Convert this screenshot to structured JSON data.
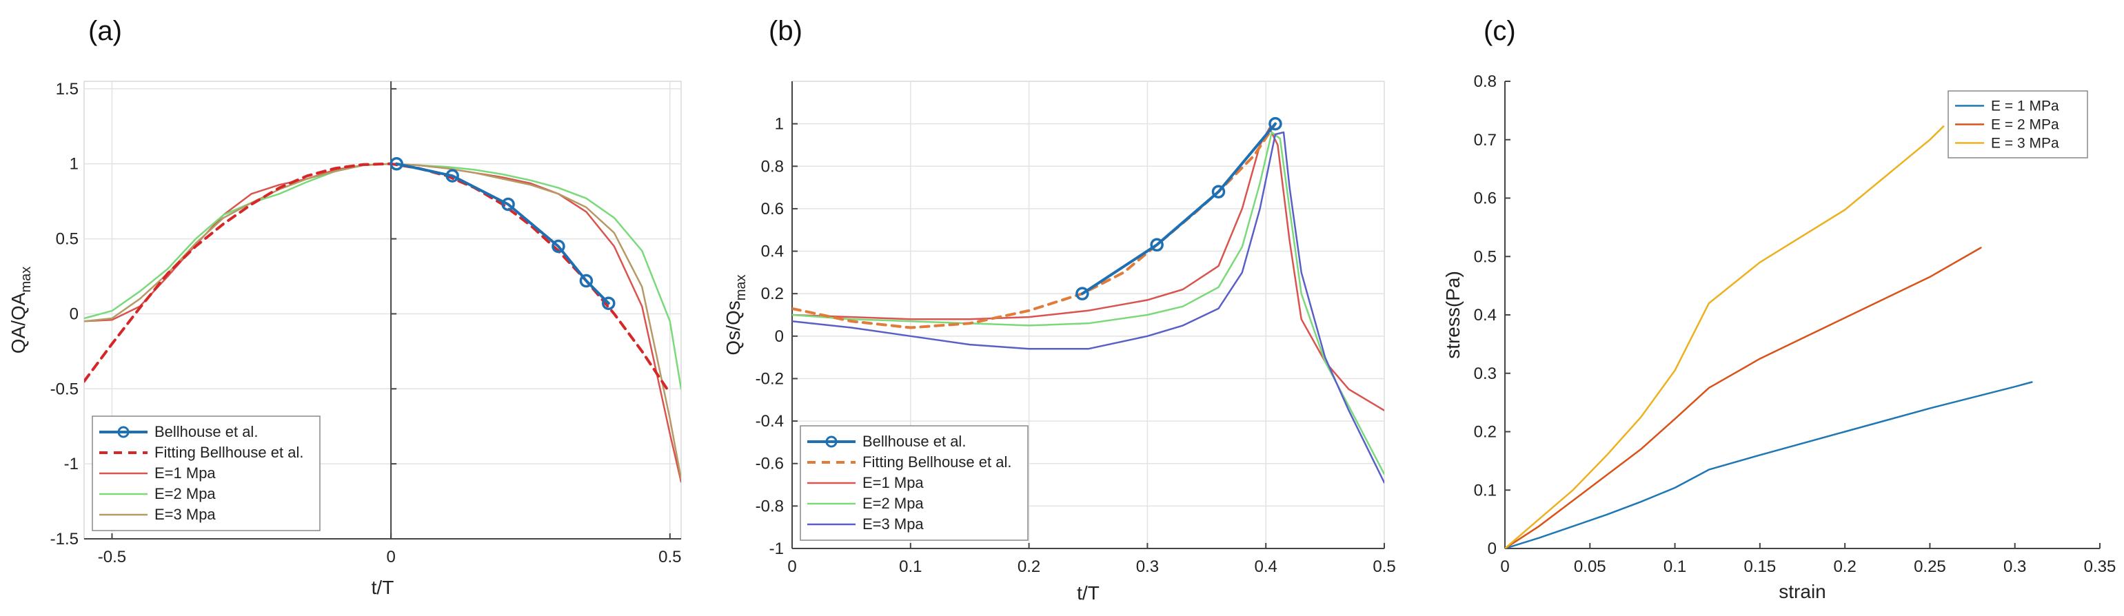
{
  "figure": {
    "panel_labels": [
      "(a)",
      "(b)",
      "(c)"
    ]
  },
  "chart_data": [
    {
      "panel": "(a)",
      "type": "line",
      "title": "",
      "xlabel": "t/T",
      "ylabel": "QA/QA",
      "ylabel_sub": "max",
      "xlim": [
        -0.55,
        0.52
      ],
      "ylim": [
        -1.5,
        1.55
      ],
      "xticks": [
        -0.5,
        0,
        0.5
      ],
      "xtick_labels": [
        "-0.5",
        "0",
        "0.5"
      ],
      "yticks": [
        -1.5,
        -1,
        -0.5,
        0,
        0.5,
        1,
        1.5
      ],
      "ytick_labels": [
        "-1.5",
        "-1",
        "-0.5",
        "0",
        "0.5",
        "1",
        "1.5"
      ],
      "grid": true,
      "legend_position": "bottom-left",
      "series": [
        {
          "name": "Bellhouse et al.",
          "color": "#1f6fb3",
          "style": "solid-marker",
          "x": [
            0.01,
            0.11,
            0.21,
            0.3,
            0.35,
            0.39
          ],
          "y": [
            1.0,
            0.92,
            0.73,
            0.45,
            0.22,
            0.07
          ]
        },
        {
          "name": "Fitting Bellhouse et al.",
          "color": "#d62728",
          "style": "dashed",
          "x": [
            -0.55,
            -0.5,
            -0.45,
            -0.4,
            -0.35,
            -0.3,
            -0.25,
            -0.2,
            -0.15,
            -0.1,
            -0.05,
            0.0,
            0.05,
            0.1,
            0.15,
            0.2,
            0.25,
            0.3,
            0.35,
            0.4,
            0.45,
            0.5
          ],
          "y": [
            -0.45,
            -0.2,
            0.04,
            0.27,
            0.45,
            0.6,
            0.73,
            0.84,
            0.92,
            0.97,
            0.995,
            1.0,
            0.97,
            0.92,
            0.84,
            0.73,
            0.59,
            0.42,
            0.22,
            0.0,
            -0.25,
            -0.53
          ]
        },
        {
          "name": "E=1 Mpa",
          "color": "#d9534f",
          "style": "solid",
          "x": [
            -0.55,
            -0.5,
            -0.45,
            -0.4,
            -0.35,
            -0.3,
            -0.25,
            -0.2,
            -0.15,
            -0.1,
            -0.05,
            0.0,
            0.05,
            0.1,
            0.15,
            0.2,
            0.25,
            0.3,
            0.35,
            0.4,
            0.45,
            0.5,
            0.52
          ],
          "y": [
            -0.05,
            -0.04,
            0.05,
            0.25,
            0.46,
            0.66,
            0.8,
            0.86,
            0.9,
            0.96,
            0.99,
            1.0,
            0.99,
            0.97,
            0.94,
            0.91,
            0.87,
            0.8,
            0.68,
            0.45,
            0.05,
            -0.8,
            -1.12
          ]
        },
        {
          "name": "E=2 Mpa",
          "color": "#7ad97a",
          "style": "solid",
          "x": [
            -0.55,
            -0.5,
            -0.45,
            -0.4,
            -0.35,
            -0.3,
            -0.25,
            -0.2,
            -0.15,
            -0.1,
            -0.05,
            0.0,
            0.05,
            0.1,
            0.15,
            0.2,
            0.25,
            0.3,
            0.35,
            0.4,
            0.45,
            0.5,
            0.52
          ],
          "y": [
            -0.03,
            0.02,
            0.15,
            0.3,
            0.5,
            0.66,
            0.74,
            0.8,
            0.88,
            0.95,
            0.99,
            1.0,
            0.99,
            0.98,
            0.96,
            0.93,
            0.89,
            0.84,
            0.77,
            0.64,
            0.42,
            -0.05,
            -0.5
          ]
        },
        {
          "name": "E=3 Mpa",
          "color": "#b59a66",
          "style": "solid",
          "x": [
            -0.55,
            -0.5,
            -0.45,
            -0.4,
            -0.35,
            -0.3,
            -0.25,
            -0.2,
            -0.15,
            -0.1,
            -0.05,
            0.0,
            0.05,
            0.1,
            0.15,
            0.2,
            0.25,
            0.3,
            0.35,
            0.4,
            0.45,
            0.5,
            0.52
          ],
          "y": [
            -0.05,
            -0.03,
            0.1,
            0.27,
            0.47,
            0.64,
            0.74,
            0.83,
            0.9,
            0.95,
            0.99,
            1.0,
            0.99,
            0.97,
            0.94,
            0.9,
            0.86,
            0.8,
            0.71,
            0.54,
            0.18,
            -0.7,
            -1.1
          ]
        }
      ]
    },
    {
      "panel": "(b)",
      "type": "line",
      "title": "",
      "xlabel": "t/T",
      "ylabel": "Qs/Qs",
      "ylabel_sub": "max",
      "xlim": [
        0,
        0.5
      ],
      "ylim": [
        -1,
        1.2
      ],
      "xticks": [
        0,
        0.1,
        0.2,
        0.3,
        0.4,
        0.5
      ],
      "xtick_labels": [
        "0",
        "0.1",
        "0.2",
        "0.3",
        "0.4",
        "0.5"
      ],
      "yticks": [
        -1,
        -0.8,
        -0.6,
        -0.4,
        -0.2,
        0,
        0.2,
        0.4,
        0.6,
        0.8,
        1
      ],
      "ytick_labels": [
        "-1",
        "-0.8",
        "-0.6",
        "-0.4",
        "-0.2",
        "0",
        "0.2",
        "0.4",
        "0.6",
        "0.8",
        "1"
      ],
      "grid": true,
      "legend_position": "bottom-left",
      "series": [
        {
          "name": "Bellhouse et al.",
          "color": "#1f6fb3",
          "style": "solid-marker",
          "x": [
            0.245,
            0.308,
            0.36,
            0.408
          ],
          "y": [
            0.2,
            0.43,
            0.68,
            1.0
          ]
        },
        {
          "name": "Fitting Bellhouse et al.",
          "color": "#e07b39",
          "style": "dashed",
          "x": [
            0.0,
            0.05,
            0.1,
            0.15,
            0.2,
            0.245,
            0.28,
            0.308,
            0.34,
            0.36,
            0.39,
            0.408
          ],
          "y": [
            0.13,
            0.07,
            0.04,
            0.06,
            0.12,
            0.2,
            0.3,
            0.43,
            0.58,
            0.68,
            0.85,
            1.0
          ]
        },
        {
          "name": "E=1 Mpa",
          "color": "#d9534f",
          "style": "solid",
          "x": [
            0.0,
            0.05,
            0.1,
            0.15,
            0.2,
            0.25,
            0.3,
            0.33,
            0.36,
            0.38,
            0.395,
            0.403,
            0.41,
            0.42,
            0.43,
            0.45,
            0.47,
            0.5
          ],
          "y": [
            0.1,
            0.09,
            0.08,
            0.08,
            0.09,
            0.12,
            0.17,
            0.22,
            0.33,
            0.6,
            0.9,
            0.98,
            0.9,
            0.45,
            0.08,
            -0.12,
            -0.25,
            -0.35
          ]
        },
        {
          "name": "E=2 Mpa",
          "color": "#7ad97a",
          "style": "solid",
          "x": [
            0.0,
            0.05,
            0.1,
            0.15,
            0.2,
            0.25,
            0.3,
            0.33,
            0.36,
            0.38,
            0.395,
            0.405,
            0.412,
            0.42,
            0.43,
            0.45,
            0.47,
            0.5
          ],
          "y": [
            0.1,
            0.08,
            0.07,
            0.06,
            0.05,
            0.06,
            0.1,
            0.14,
            0.23,
            0.42,
            0.72,
            0.96,
            0.93,
            0.6,
            0.2,
            -0.12,
            -0.33,
            -0.65
          ]
        },
        {
          "name": "E=3 Mpa",
          "color": "#5a5fc7",
          "style": "solid",
          "x": [
            0.0,
            0.05,
            0.1,
            0.15,
            0.2,
            0.25,
            0.3,
            0.33,
            0.36,
            0.38,
            0.395,
            0.408,
            0.415,
            0.42,
            0.43,
            0.45,
            0.47,
            0.5
          ],
          "y": [
            0.07,
            0.04,
            0.0,
            -0.04,
            -0.06,
            -0.06,
            0.0,
            0.05,
            0.13,
            0.3,
            0.6,
            0.95,
            0.96,
            0.7,
            0.3,
            -0.1,
            -0.35,
            -0.69
          ]
        }
      ]
    },
    {
      "panel": "(c)",
      "type": "line",
      "title": "",
      "xlabel": "strain",
      "ylabel": "stress(Pa)",
      "xlim": [
        0,
        0.35
      ],
      "ylim": [
        0,
        0.8
      ],
      "xticks": [
        0,
        0.05,
        0.1,
        0.15,
        0.2,
        0.25,
        0.3,
        0.35
      ],
      "xtick_labels": [
        "0",
        "0.05",
        "0.1",
        "0.15",
        "0.2",
        "0.25",
        "0.3",
        "0.35"
      ],
      "yticks": [
        0,
        0.1,
        0.2,
        0.3,
        0.4,
        0.5,
        0.6,
        0.7,
        0.8
      ],
      "ytick_labels": [
        "0",
        "0.1",
        "0.2",
        "0.3",
        "0.4",
        "0.5",
        "0.6",
        "0.7",
        "0.8"
      ],
      "grid": false,
      "legend_position": "top-right",
      "series": [
        {
          "name": "E = 1 MPa",
          "color": "#1f77b4",
          "style": "solid",
          "x": [
            0,
            0.02,
            0.04,
            0.06,
            0.08,
            0.1,
            0.12,
            0.15,
            0.2,
            0.25,
            0.3,
            0.31
          ],
          "y": [
            0,
            0.018,
            0.038,
            0.058,
            0.08,
            0.104,
            0.135,
            0.16,
            0.2,
            0.24,
            0.277,
            0.285
          ]
        },
        {
          "name": "E = 2 MPa",
          "color": "#d95319",
          "style": "solid",
          "x": [
            0,
            0.02,
            0.04,
            0.06,
            0.08,
            0.1,
            0.12,
            0.15,
            0.2,
            0.25,
            0.28
          ],
          "y": [
            0,
            0.038,
            0.082,
            0.126,
            0.17,
            0.222,
            0.275,
            0.325,
            0.395,
            0.465,
            0.515
          ]
        },
        {
          "name": "E = 3 MPa",
          "color": "#edb120",
          "style": "solid",
          "x": [
            0,
            0.02,
            0.04,
            0.06,
            0.08,
            0.1,
            0.12,
            0.15,
            0.2,
            0.25,
            0.258
          ],
          "y": [
            0,
            0.05,
            0.1,
            0.16,
            0.225,
            0.305,
            0.42,
            0.49,
            0.58,
            0.7,
            0.723
          ]
        }
      ]
    }
  ]
}
